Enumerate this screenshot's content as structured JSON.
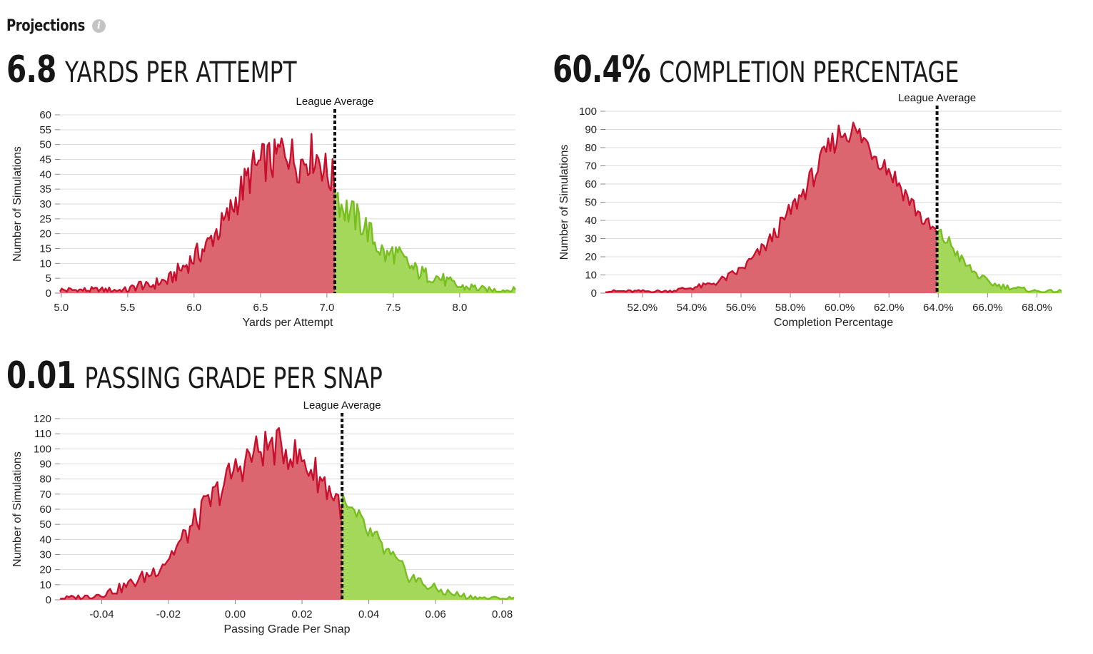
{
  "header": {
    "title": "Projections",
    "info_icon": "info-icon"
  },
  "colors": {
    "below": "#c8102e",
    "below_fill": "#dc6670",
    "above": "#78be20",
    "above_fill": "#a4d85a",
    "avg_line": "#111111",
    "grid": "#dcdcdc"
  },
  "panels": [
    {
      "value": "6.8",
      "label": "YARDS PER ATTEMPT"
    },
    {
      "value": "60.4%",
      "label": "COMPLETION PERCENTAGE"
    },
    {
      "value": "0.01",
      "label": "PASSING GRADE PER SNAP"
    }
  ],
  "chart_data": [
    {
      "type": "area",
      "xlabel": "Yards per Attempt",
      "ylabel": "Number of Simulations",
      "xlim": [
        4.99,
        8.42
      ],
      "ylim": [
        0,
        60
      ],
      "xticks": [
        5.0,
        5.5,
        6.0,
        6.5,
        7.0,
        7.5,
        8.0
      ],
      "xtick_labels": [
        "5.0",
        "5.5",
        "6.0",
        "6.5",
        "7.0",
        "7.5",
        "8.0"
      ],
      "yticks": [
        0,
        5,
        10,
        15,
        20,
        25,
        30,
        35,
        40,
        45,
        50,
        55,
        60
      ],
      "reference_line": {
        "label": "League Average",
        "x": 7.06
      },
      "series": [
        {
          "x": [
            4.99,
            5.5,
            5.55,
            5.6,
            5.65,
            5.7,
            5.75,
            5.8,
            5.85,
            5.9,
            5.95,
            6.0,
            6.05,
            6.1,
            6.15,
            6.2,
            6.25,
            6.3,
            6.35,
            6.4,
            6.45,
            6.5,
            6.55,
            6.6,
            6.65,
            6.7,
            6.75,
            6.8,
            6.85,
            6.9,
            6.95,
            7.0,
            7.06,
            7.1,
            7.15,
            7.2,
            7.25,
            7.3,
            7.35,
            7.4,
            7.45,
            7.5,
            7.55,
            7.6,
            7.65,
            7.7,
            7.75,
            7.8,
            7.85,
            7.9,
            7.95,
            8.0,
            8.05,
            8.1,
            8.2,
            8.3,
            8.42
          ],
          "y": [
            1,
            1,
            2,
            3,
            2,
            3,
            4,
            4,
            6,
            8,
            10,
            12,
            14,
            16,
            20,
            22,
            25,
            30,
            34,
            38,
            42,
            43,
            45,
            44,
            48,
            49,
            45,
            44,
            46,
            47,
            45,
            40,
            38,
            30,
            28,
            26,
            24,
            22,
            18,
            15,
            12,
            14,
            12,
            10,
            8,
            7,
            6,
            6,
            5,
            4,
            3,
            2,
            2,
            2,
            1,
            1,
            1
          ]
        }
      ]
    },
    {
      "type": "area",
      "xlabel": "Completion Percentage",
      "ylabel": "Number of Simulations",
      "xlim": [
        50.5,
        69.0
      ],
      "ylim": [
        0,
        100
      ],
      "xticks": [
        52,
        54,
        56,
        58,
        60,
        62,
        64,
        66,
        68
      ],
      "xtick_labels": [
        "52.0%",
        "54.0%",
        "56.0%",
        "58.0%",
        "60.0%",
        "62.0%",
        "64.0%",
        "66.0%",
        "68.0%"
      ],
      "yticks": [
        0,
        10,
        20,
        30,
        40,
        50,
        60,
        70,
        80,
        90,
        100
      ],
      "reference_line": {
        "label": "League Average",
        "x": 63.95
      },
      "series": [
        {
          "x": [
            50.5,
            51.5,
            52.0,
            52.5,
            53.0,
            53.5,
            54.0,
            54.5,
            55.0,
            55.5,
            56.0,
            56.5,
            57.0,
            57.5,
            58.0,
            58.5,
            59.0,
            59.5,
            60.0,
            60.5,
            61.0,
            61.5,
            62.0,
            62.5,
            63.0,
            63.5,
            63.95,
            64.5,
            65.0,
            65.5,
            66.0,
            66.5,
            67.0,
            67.5,
            68.0,
            69.0
          ],
          "y": [
            1,
            1,
            1,
            1,
            1,
            2,
            3,
            4,
            6,
            9,
            13,
            19,
            26,
            35,
            45,
            55,
            66,
            78,
            88,
            90,
            84,
            76,
            68,
            58,
            48,
            38,
            33,
            27,
            17,
            11,
            6,
            4,
            3,
            2,
            1,
            1
          ]
        }
      ]
    },
    {
      "type": "area",
      "xlabel": "Passing Grade Per Snap",
      "ylabel": "Number of Simulations",
      "xlim": [
        -0.0525,
        0.0835
      ],
      "ylim": [
        0,
        120
      ],
      "xticks": [
        -0.04,
        -0.02,
        0.0,
        0.02,
        0.04,
        0.06,
        0.08
      ],
      "xtick_labels": [
        "-0.04",
        "-0.02",
        "0.00",
        "0.02",
        "0.04",
        "0.06",
        "0.08"
      ],
      "yticks": [
        0,
        10,
        20,
        30,
        40,
        50,
        60,
        70,
        80,
        90,
        100,
        110,
        120
      ],
      "reference_line": {
        "label": "League Average",
        "x": 0.032
      },
      "series": [
        {
          "x": [
            -0.0525,
            -0.045,
            -0.04,
            -0.035,
            -0.03,
            -0.025,
            -0.02,
            -0.015,
            -0.01,
            -0.005,
            0.0,
            0.005,
            0.01,
            0.015,
            0.02,
            0.025,
            0.03,
            0.032,
            0.035,
            0.04,
            0.045,
            0.05,
            0.055,
            0.06,
            0.065,
            0.07,
            0.075,
            0.0835
          ],
          "y": [
            1,
            2,
            4,
            7,
            12,
            18,
            28,
            42,
            58,
            72,
            86,
            96,
            102,
            100,
            92,
            82,
            68,
            62,
            56,
            44,
            32,
            20,
            12,
            7,
            4,
            2,
            1,
            1
          ]
        }
      ]
    }
  ]
}
